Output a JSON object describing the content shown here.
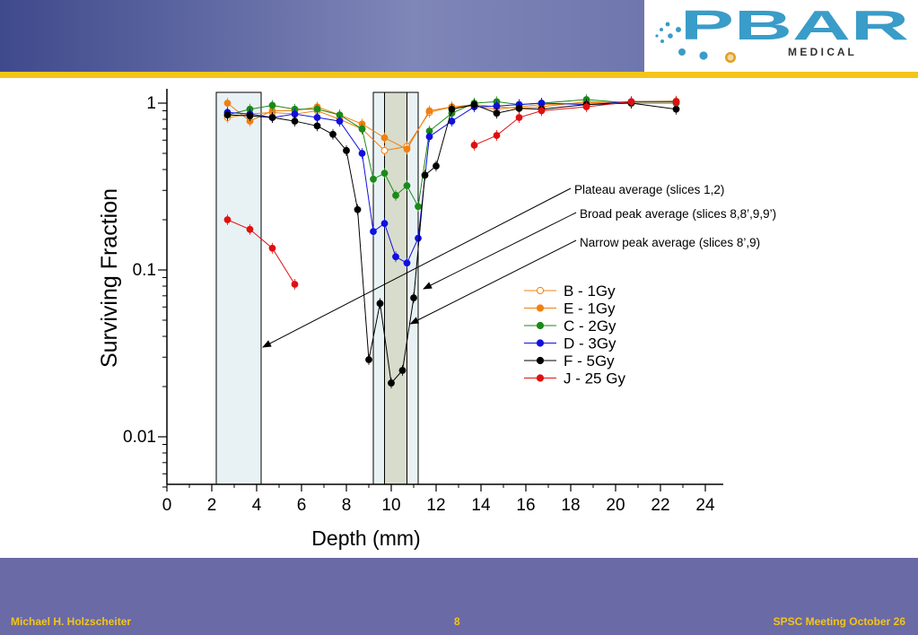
{
  "slide": {
    "logo_text": "PBAR",
    "logo_subtext": "M E D I C A L",
    "footer_left": "Michael H. Holzscheiter",
    "footer_center": "8",
    "footer_right": "SPSC Meeting October 26"
  },
  "colors": {
    "header_start": "#3f4a8c",
    "header_accent": "#f4c518",
    "footer_bg": "#6a6aa6",
    "shade_light": "#e8f2f5",
    "shade_dark": "#d8dccc",
    "logo_blue": "#3a9cc8"
  },
  "chart_data": {
    "type": "scatter",
    "xlabel": "Depth (mm)",
    "ylabel": "Surviving Fraction",
    "y_scale": "log",
    "xlim": [
      0,
      24.8
    ],
    "ylim": [
      0.005,
      1.3
    ],
    "x_ticks": [
      0,
      2,
      4,
      6,
      8,
      10,
      12,
      14,
      16,
      18,
      20,
      22,
      24
    ],
    "y_ticks": [
      {
        "value": 1,
        "label": "1"
      },
      {
        "value": 0.1,
        "label": "0.1"
      },
      {
        "value": 0.01,
        "label": "0.01"
      }
    ],
    "regions": [
      {
        "name": "Plateau",
        "x_start": 2.2,
        "x_end": 4.2,
        "fill": "#e8f2f5"
      },
      {
        "name": "Broad peak",
        "x_start": 9.2,
        "x_end": 11.2,
        "fill": "#e8f2f5"
      },
      {
        "name": "Narrow peak",
        "x_start": 9.7,
        "x_end": 10.7,
        "fill": "#d8dccc"
      }
    ],
    "annotations": [
      {
        "text": "Plateau average (slices 1,2)",
        "target_region": "Plateau"
      },
      {
        "text": "Broad peak average (slices 8,8’,9,9’)",
        "target_region": "Broad peak"
      },
      {
        "text": "Narrow peak average (slices 8’,9)",
        "target_region": "Narrow peak"
      }
    ],
    "legend_position": "right-middle",
    "series": [
      {
        "name": "B - 1Gy",
        "color": "#f08010",
        "marker": "open",
        "x": [
          2.7,
          3.7,
          4.7,
          5.7,
          6.7,
          7.7,
          8.7,
          9.7,
          10.7,
          11.7,
          12.7,
          13.7,
          14.7,
          15.7,
          16.7,
          18.7,
          20.7,
          22.7
        ],
        "y": [
          0.82,
          0.86,
          0.88,
          0.86,
          0.9,
          0.8,
          0.7,
          0.52,
          0.55,
          0.88,
          0.95,
          0.96,
          0.92,
          0.95,
          0.98,
          1.0,
          1.02,
          1.03
        ]
      },
      {
        "name": "E - 1Gy",
        "color": "#f08010",
        "marker": "filled",
        "x": [
          2.7,
          3.7,
          4.7,
          5.7,
          6.7,
          7.7,
          8.7,
          9.7,
          10.7,
          11.7,
          12.7,
          13.7,
          14.7,
          15.7,
          16.7,
          18.7,
          20.7,
          22.7
        ],
        "y": [
          1.0,
          0.78,
          0.9,
          0.9,
          0.95,
          0.85,
          0.75,
          0.62,
          0.53,
          0.9,
          0.95,
          0.98,
          0.95,
          0.93,
          0.95,
          1.02,
          1.0,
          1.0
        ]
      },
      {
        "name": "C - 2Gy",
        "color": "#1a8a1a",
        "marker": "filled",
        "x": [
          2.7,
          3.7,
          4.7,
          5.7,
          6.7,
          7.7,
          8.7,
          9.2,
          9.7,
          10.2,
          10.7,
          11.2,
          11.7,
          12.7,
          13.7,
          14.7,
          15.7,
          16.7,
          18.7,
          20.7,
          22.7
        ],
        "y": [
          0.85,
          0.92,
          0.97,
          0.92,
          0.92,
          0.85,
          0.7,
          0.35,
          0.38,
          0.28,
          0.32,
          0.24,
          0.68,
          0.87,
          1.0,
          1.02,
          0.98,
          1.0,
          1.05,
          1.0,
          1.0
        ]
      },
      {
        "name": "D - 3Gy",
        "color": "#1010e0",
        "marker": "filled",
        "x": [
          2.7,
          3.7,
          4.7,
          5.7,
          6.7,
          7.7,
          8.7,
          9.2,
          9.7,
          10.2,
          10.7,
          11.2,
          11.7,
          12.7,
          13.7,
          14.7,
          15.7,
          16.7,
          18.7,
          20.7,
          22.7
        ],
        "y": [
          0.88,
          0.86,
          0.82,
          0.86,
          0.82,
          0.78,
          0.5,
          0.17,
          0.19,
          0.12,
          0.11,
          0.155,
          0.63,
          0.78,
          0.95,
          0.96,
          0.98,
          1.0,
          0.98,
          1.02,
          1.02
        ]
      },
      {
        "name": "F - 5Gy",
        "color": "#000000",
        "marker": "filled",
        "x": [
          2.7,
          3.7,
          4.7,
          5.7,
          6.7,
          7.4,
          8.0,
          8.5,
          9.0,
          9.5,
          10.0,
          10.5,
          11.0,
          11.5,
          12.0,
          12.7,
          13.7,
          14.7,
          15.7,
          16.7,
          18.7,
          20.7,
          22.7
        ],
        "y": [
          0.85,
          0.84,
          0.82,
          0.78,
          0.73,
          0.65,
          0.52,
          0.23,
          0.029,
          0.063,
          0.021,
          0.025,
          0.068,
          0.37,
          0.42,
          0.92,
          0.98,
          0.87,
          0.93,
          0.92,
          0.98,
          1.0,
          0.92
        ]
      },
      {
        "name": "J - 25 Gy",
        "color": "#e01010",
        "marker": "filled",
        "x": [
          2.7,
          3.7,
          4.7,
          5.7,
          13.7,
          14.7,
          15.7,
          16.7,
          18.7,
          20.7,
          22.7
        ],
        "y": [
          0.2,
          0.175,
          0.135,
          0.082,
          0.56,
          0.64,
          0.82,
          0.9,
          0.95,
          1.02,
          1.02
        ]
      }
    ]
  }
}
